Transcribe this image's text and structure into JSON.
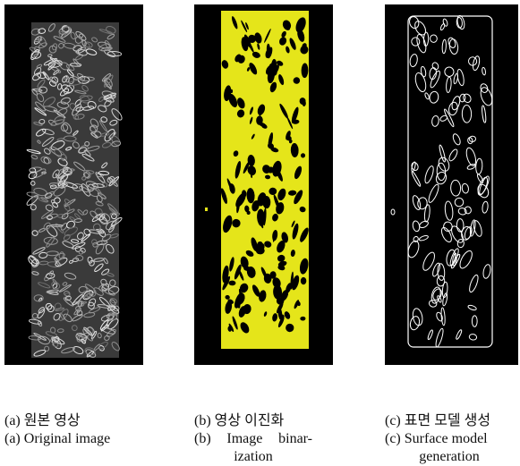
{
  "panels": [
    {
      "caption_ko": "(a) 원본 영상",
      "caption_en": [
        "(a) Original image"
      ]
    },
    {
      "caption_ko": "(b) 영상 이진화",
      "caption_en": [
        "(b) Image binar-",
        "ization"
      ]
    },
    {
      "caption_ko": "(c) 표면 모델 생성",
      "caption_en": [
        "(c) Surface model",
        "generation"
      ]
    }
  ]
}
